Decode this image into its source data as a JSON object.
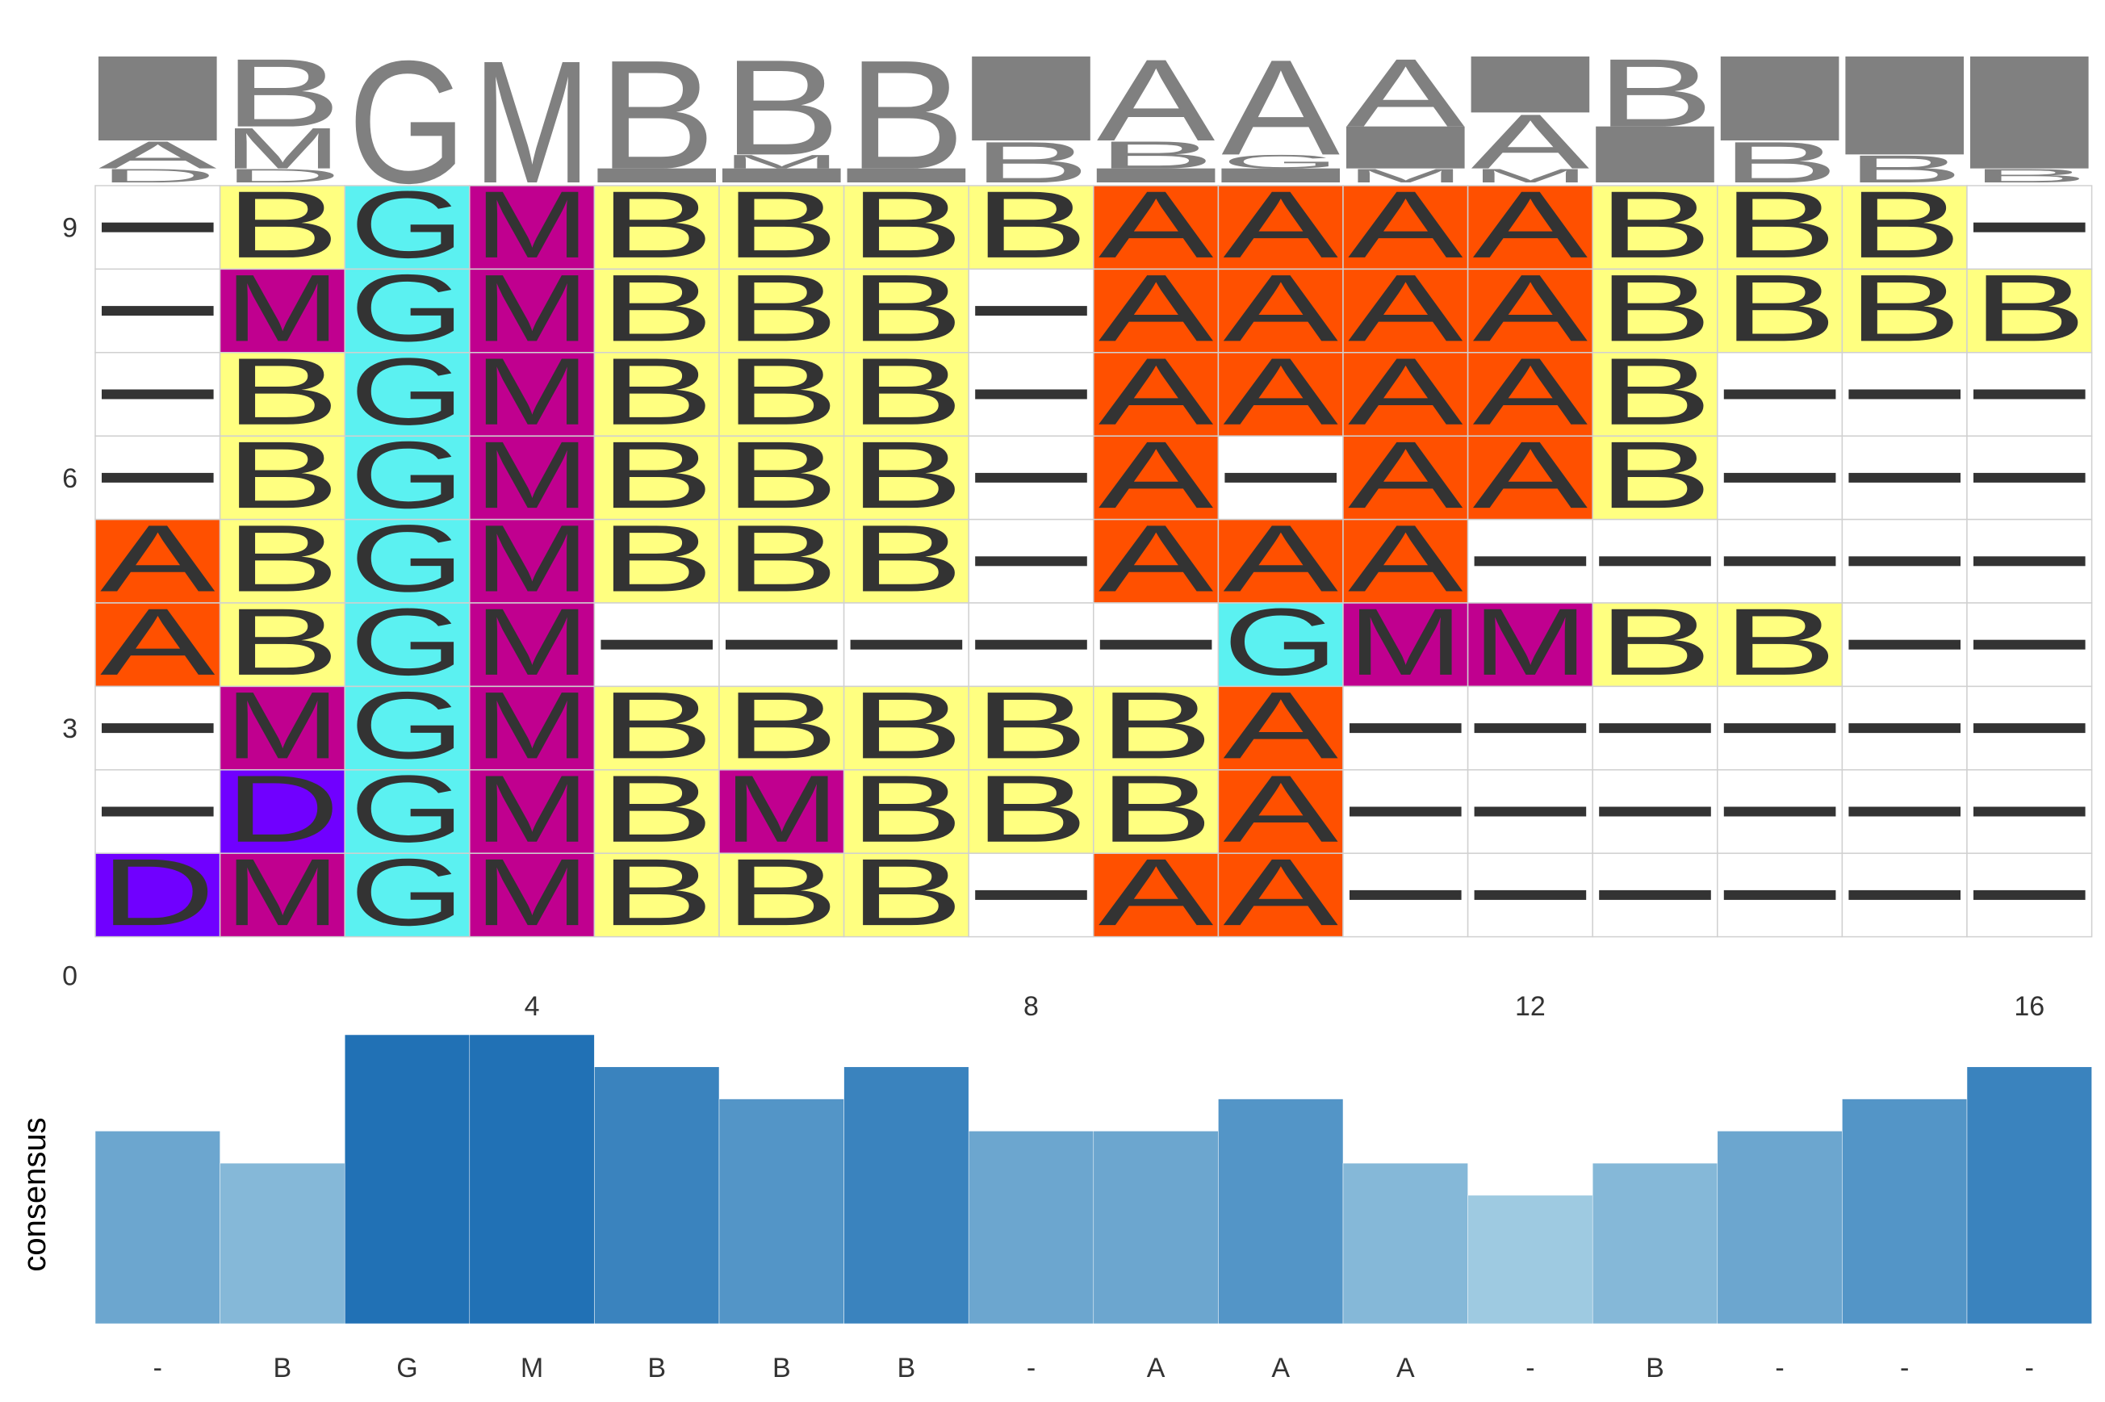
{
  "chart_data": {
    "type": "heatmap",
    "positions": 16,
    "sequences_top_to_bottom": [
      "-BGMBBBBAAAABBB-",
      "-MGMBBB-AAAABBBB",
      "-BGMBBB-AAAAB---",
      "-BGMBBB-A-AAB---",
      "ABGMBBB-AAA-----",
      "ABGM-----GMMBB--",
      "-MGMBBBBBA------",
      "-DGMBMBBBA------",
      "DMGMBBB-AA------"
    ],
    "row_axis_ticks": [
      "9",
      "6",
      "3",
      "0"
    ],
    "column_axis_ticks": [
      "4",
      "8",
      "12",
      "16"
    ],
    "consensus": [
      "-",
      "B",
      "G",
      "M",
      "B",
      "B",
      "B",
      "-",
      "A",
      "A",
      "A",
      "-",
      "B",
      "-",
      "-",
      "-"
    ],
    "consensus_label": "consensus",
    "consensus_values": [
      6,
      5,
      9,
      9,
      8,
      7,
      8,
      6,
      6,
      7,
      5,
      4,
      5,
      6,
      7,
      8
    ],
    "consensus_max": 9,
    "letter_colors": {
      "A": "#FF5000",
      "B": "#FFFF80",
      "G": "#5BF1F1",
      "M": "#C0008F",
      "D": "#7000FF",
      "-": "#FFFFFF"
    },
    "logo_color": "#808080",
    "bar_color_low": "#9ECAE1",
    "bar_color_high": "#2171B5",
    "grid": true
  }
}
